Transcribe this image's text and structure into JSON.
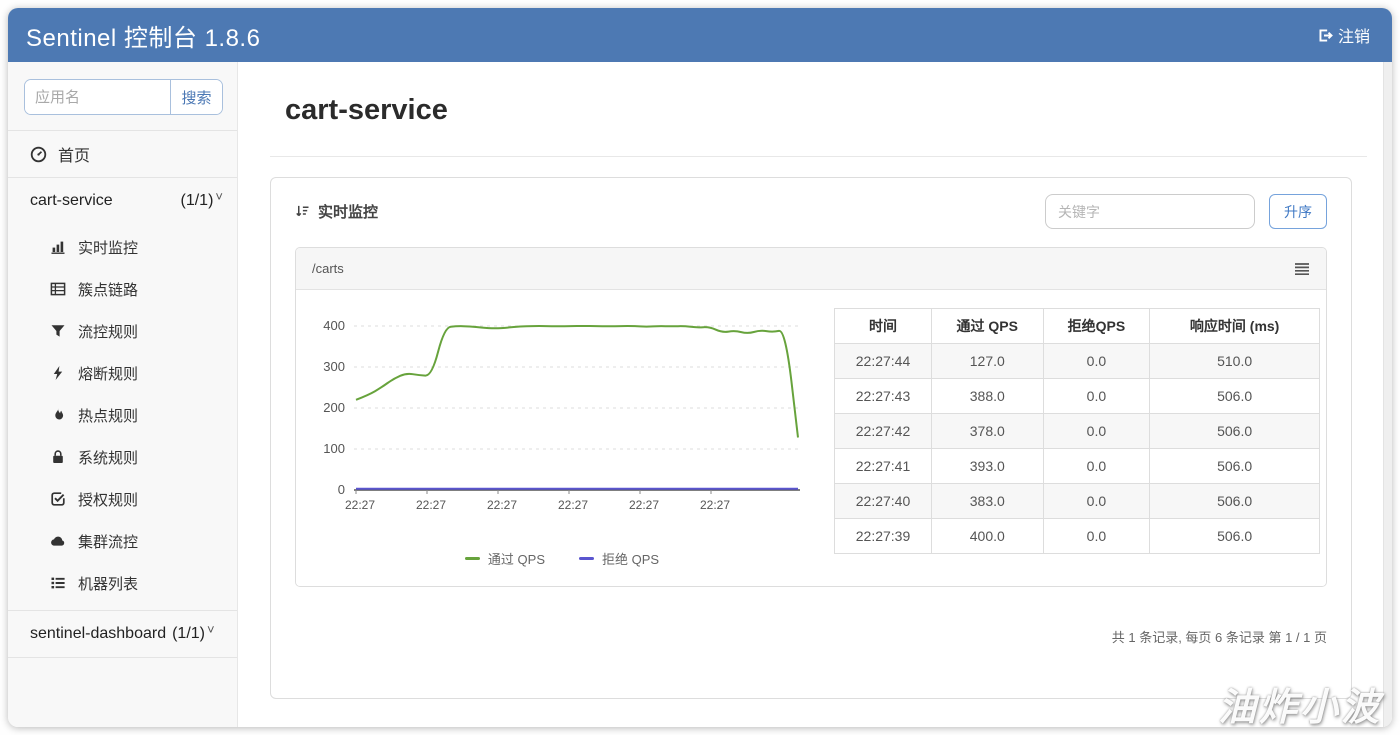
{
  "header": {
    "title": "Sentinel 控制台 1.8.6",
    "logout_label": "注销"
  },
  "sidebar": {
    "search_placeholder": "应用名",
    "search_button": "搜索",
    "home_label": "首页",
    "app1": {
      "name": "cart-service",
      "count": "(1/1)"
    },
    "app1_menu": [
      "实时监控",
      "簇点链路",
      "流控规则",
      "熔断规则",
      "热点规则",
      "系统规则",
      "授权规则",
      "集群流控",
      "机器列表"
    ],
    "app2": {
      "name": "sentinel-dashboard",
      "count": "(1/1)"
    }
  },
  "main": {
    "page_title": "cart-service",
    "panel_title": "实时监控",
    "keyword_placeholder": "关键字",
    "sort_button": "升序",
    "pagination": "共 1 条记录, 每页 6 条记录 第 1 / 1 页"
  },
  "chart_data": {
    "type": "line",
    "title": "/carts",
    "xlabel": "",
    "ylabel": "",
    "ylim": [
      0,
      400
    ],
    "y_ticks": [
      0,
      100,
      200,
      300,
      400
    ],
    "x_tick_labels": [
      "22:27",
      "22:27",
      "22:27",
      "22:27",
      "22:27",
      "22:27"
    ],
    "grid": true,
    "legend_position": "bottom",
    "series": [
      {
        "name": "通过 QPS",
        "color": "#67a33c",
        "values": [
          220,
          232,
          250,
          272,
          285,
          280,
          278,
          396,
          400,
          399,
          396,
          394,
          396,
          399,
          400,
          400,
          399,
          400,
          400,
          400,
          399,
          400,
          400,
          398,
          400,
          399,
          400,
          396,
          398,
          384,
          389,
          381,
          390,
          385,
          391,
          128
        ]
      },
      {
        "name": "拒绝 QPS",
        "color": "#5a55cf",
        "values": [
          0,
          0,
          0,
          0,
          0,
          0,
          0,
          0,
          0,
          0,
          0,
          0,
          0,
          0,
          0,
          0,
          0,
          0,
          0,
          0,
          0,
          0,
          0,
          0,
          0,
          0,
          0,
          0,
          0,
          0,
          0,
          0,
          0,
          0,
          0,
          0
        ]
      }
    ]
  },
  "table": {
    "columns": [
      "时间",
      "通过 QPS",
      "拒绝QPS",
      "响应时间 (ms)"
    ],
    "rows": [
      [
        "22:27:44",
        "127.0",
        "0.0",
        "510.0"
      ],
      [
        "22:27:43",
        "388.0",
        "0.0",
        "506.0"
      ],
      [
        "22:27:42",
        "378.0",
        "0.0",
        "506.0"
      ],
      [
        "22:27:41",
        "393.0",
        "0.0",
        "506.0"
      ],
      [
        "22:27:40",
        "383.0",
        "0.0",
        "506.0"
      ],
      [
        "22:27:39",
        "400.0",
        "0.0",
        "506.0"
      ]
    ]
  },
  "watermark": "油炸小波"
}
